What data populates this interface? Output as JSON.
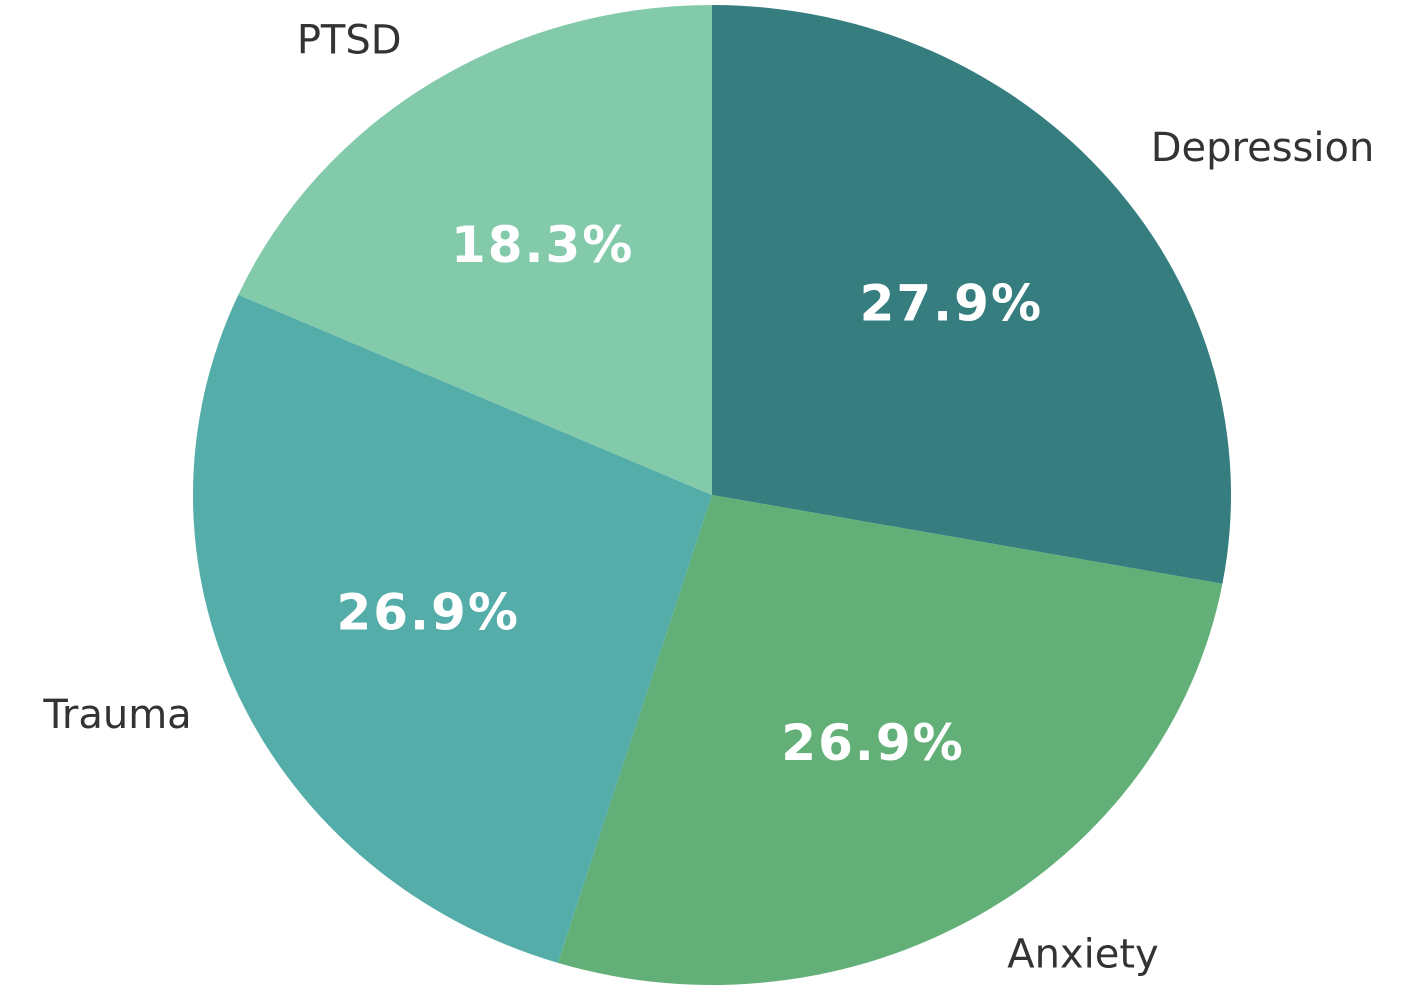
{
  "chart_data": {
    "type": "pie",
    "categories": [
      "Depression",
      "Anxiety",
      "Trauma",
      "PTSD"
    ],
    "values": [
      27.9,
      26.9,
      26.9,
      18.3
    ],
    "value_labels": [
      "27.9%",
      "26.9%",
      "26.9%",
      "18.3%"
    ],
    "colors": [
      "#367d7f",
      "#62b078",
      "#54ada9",
      "#83caab"
    ]
  }
}
